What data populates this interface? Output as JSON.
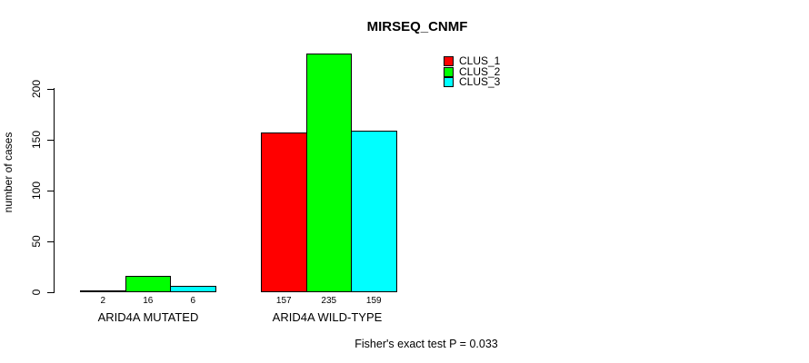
{
  "title": "MIRSEQ_CNMF",
  "ylabel": "number of cases",
  "footer": "Fisher's exact test P = 0.033",
  "chart_data": {
    "type": "bar",
    "title": "MIRSEQ_CNMF",
    "ylabel": "number of cases",
    "xlabel": "",
    "categories": [
      "ARID4A MUTATED",
      "ARID4A WILD-TYPE"
    ],
    "series": [
      {
        "name": "CLUS_1",
        "color": "#ff0000",
        "values": [
          2,
          157
        ]
      },
      {
        "name": "CLUS_2",
        "color": "#00ff00",
        "values": [
          16,
          235
        ]
      },
      {
        "name": "CLUS_3",
        "color": "#00ffff",
        "values": [
          6,
          159
        ]
      }
    ],
    "bar_labels": [
      [
        "2",
        "16",
        "6"
      ],
      [
        "157",
        "235",
        "159"
      ]
    ],
    "yticks": [
      0,
      50,
      100,
      150,
      200
    ],
    "ylim": [
      0,
      235
    ],
    "grid": false,
    "legend_position": "top-right",
    "annotation": "Fisher's exact test P = 0.033"
  }
}
